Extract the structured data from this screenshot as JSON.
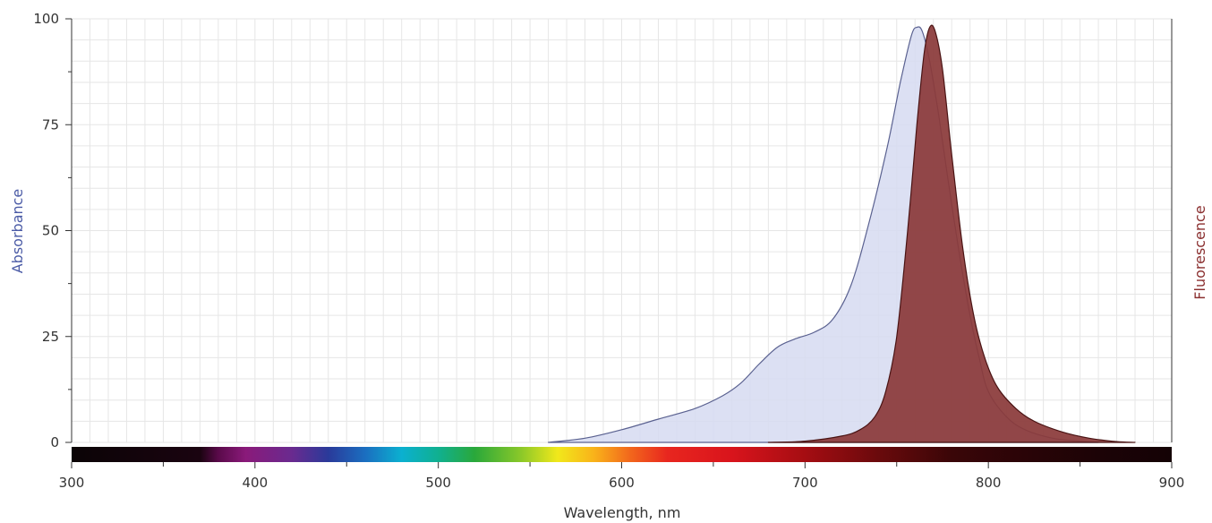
{
  "colors": {
    "absorbance": "#4b5ba6",
    "absorbance_fill": "#d6dbf1",
    "absorbance_stroke": "#5a6190",
    "fluorescence": "#8a2f2f",
    "fluorescence_fill": "#8b3a3a",
    "fluorescence_stroke": "#4a1414",
    "grid": "#e6e6e6",
    "axis": "#333333"
  },
  "chart_data": {
    "type": "area",
    "xlabel": "Wavelength, nm",
    "ylabel_left": "Absorbance",
    "ylabel_right": "Fluorescence",
    "xlim": [
      300,
      900
    ],
    "ylim": [
      0,
      100
    ],
    "x_ticks": [
      300,
      400,
      500,
      600,
      700,
      800,
      900
    ],
    "x_tick_labels": [
      "300",
      "400",
      "500",
      "600",
      "700",
      "800",
      "900"
    ],
    "y_ticks": [
      0,
      25,
      50,
      75,
      100
    ],
    "y_tick_labels": [
      "0",
      "25",
      "50",
      "75",
      "100"
    ],
    "grid": true,
    "legend": "none",
    "spectrum_bar": true,
    "series": [
      {
        "name": "Absorbance",
        "points": [
          [
            560,
            0
          ],
          [
            580,
            1
          ],
          [
            600,
            3
          ],
          [
            620,
            5.5
          ],
          [
            640,
            8
          ],
          [
            655,
            11
          ],
          [
            665,
            14
          ],
          [
            675,
            18.5
          ],
          [
            685,
            22.5
          ],
          [
            695,
            24.5
          ],
          [
            705,
            26
          ],
          [
            715,
            29
          ],
          [
            725,
            37
          ],
          [
            735,
            52
          ],
          [
            745,
            70
          ],
          [
            752,
            85
          ],
          [
            758,
            96
          ],
          [
            761,
            98
          ],
          [
            764,
            97
          ],
          [
            768,
            90
          ],
          [
            773,
            77
          ],
          [
            778,
            62
          ],
          [
            784,
            45
          ],
          [
            790,
            30
          ],
          [
            795,
            20
          ],
          [
            800,
            12
          ],
          [
            810,
            6
          ],
          [
            820,
            3
          ],
          [
            835,
            1
          ],
          [
            850,
            0.3
          ],
          [
            860,
            0
          ]
        ]
      },
      {
        "name": "Fluorescence",
        "points": [
          [
            680,
            0
          ],
          [
            700,
            0.3
          ],
          [
            720,
            1.5
          ],
          [
            730,
            3
          ],
          [
            738,
            6
          ],
          [
            744,
            12
          ],
          [
            750,
            25
          ],
          [
            756,
            50
          ],
          [
            761,
            75
          ],
          [
            765,
            92
          ],
          [
            768,
            98
          ],
          [
            771,
            97
          ],
          [
            775,
            88
          ],
          [
            780,
            68
          ],
          [
            786,
            46
          ],
          [
            792,
            30
          ],
          [
            798,
            20
          ],
          [
            805,
            13
          ],
          [
            815,
            8
          ],
          [
            825,
            5
          ],
          [
            840,
            2.5
          ],
          [
            855,
            1
          ],
          [
            870,
            0.2
          ],
          [
            880,
            0
          ]
        ]
      }
    ]
  }
}
